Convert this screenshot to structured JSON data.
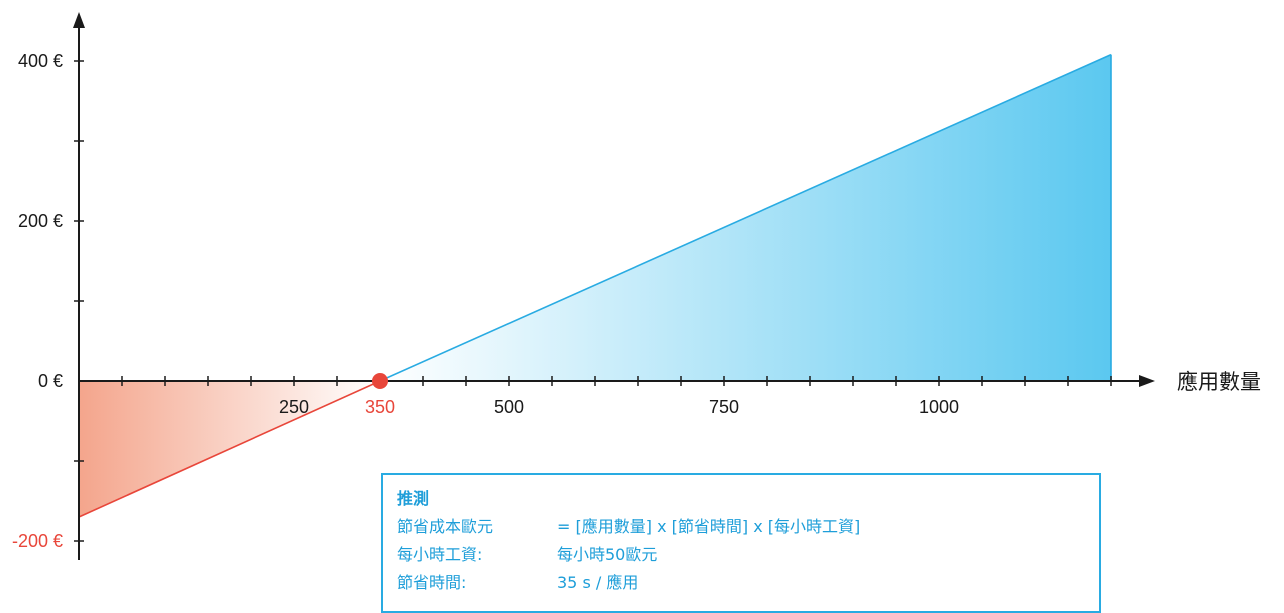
{
  "chart_data": {
    "type": "area",
    "xlabel": "應用數量",
    "ylabel": "",
    "xlim": [
      -25,
      1200
    ],
    "ylim": [
      -200,
      450
    ],
    "x_ticks": [
      250,
      350,
      500,
      750,
      1000
    ],
    "x_tick_labels": [
      "250",
      "350",
      "500",
      "750",
      "1000"
    ],
    "x_minor_step": 50,
    "y_ticks": [
      -200,
      0,
      200,
      400
    ],
    "y_tick_labels": [
      "-200 €",
      "0 €",
      "200 €",
      "400 €"
    ],
    "y_minor_step": 100,
    "series": [
      {
        "x": [
          0,
          350,
          1200
        ],
        "y": [
          -170,
          0,
          408
        ]
      }
    ],
    "break_even": {
      "x": 350,
      "y": 0,
      "label": "350"
    },
    "colors": {
      "loss": "#e8463a",
      "loss_fill": "#f4a58c",
      "gain": "#29abe2",
      "gain_fill": "#5bc8f0",
      "axis": "#1a1a1a"
    },
    "grid": false,
    "legend": "none"
  },
  "info": {
    "title": "推測",
    "rows": [
      {
        "key": "節省成本歐元",
        "value": "=  [應用數量] x [節省時間] x [每小時工資]"
      },
      {
        "key": "每小時工資:",
        "value": "每小時50歐元"
      },
      {
        "key": "節省時間:",
        "value": "35 s / 應用"
      }
    ]
  }
}
